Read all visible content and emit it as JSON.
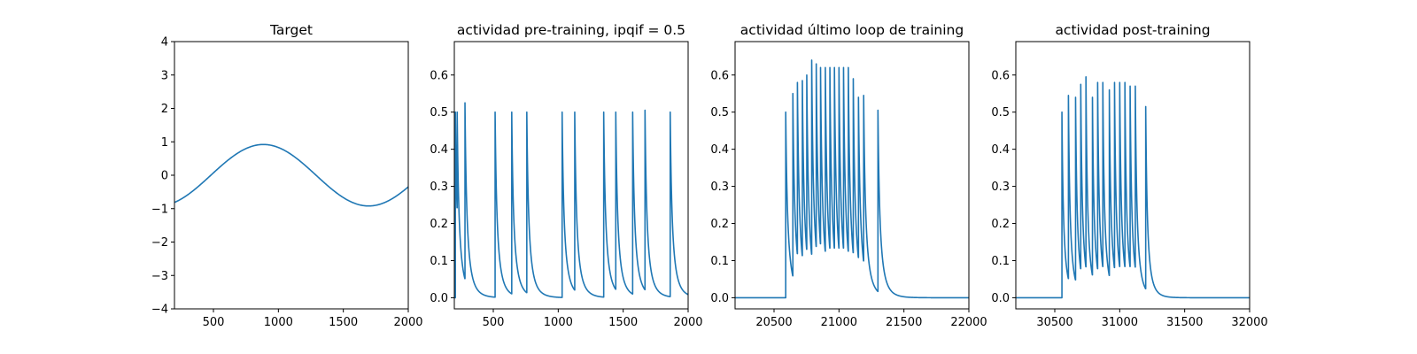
{
  "chart_data": [
    {
      "type": "line",
      "title": "Target",
      "xlim": [
        200,
        2000
      ],
      "ylim": [
        -4,
        4
      ],
      "xticks": [
        500,
        1000,
        1500,
        2000
      ],
      "yticks": [
        -4,
        -3,
        -2,
        -1,
        0,
        1,
        2,
        3,
        4
      ],
      "xtick_labels": [
        "500",
        "1000",
        "1500",
        "2000"
      ],
      "ytick_labels": [
        "−4",
        "−3",
        "−2",
        "−1",
        "0",
        "1",
        "2",
        "3",
        "4"
      ],
      "color": "#1f77b4",
      "series": [
        {
          "kind": "sine",
          "amplitude": 0.92,
          "period": 1620,
          "crest_x": 885
        }
      ]
    },
    {
      "type": "line",
      "title": "actividad pre-training, ipqif = 0.5",
      "xlim": [
        200,
        2000
      ],
      "ylim": [
        -0.03,
        0.69
      ],
      "xticks": [
        500,
        1000,
        1500,
        2000
      ],
      "yticks": [
        0.0,
        0.1,
        0.2,
        0.3,
        0.4,
        0.5,
        0.6
      ],
      "xtick_labels": [
        "500",
        "1000",
        "1500",
        "2000"
      ],
      "ytick_labels": [
        "0.0",
        "0.1",
        "0.2",
        "0.3",
        "0.4",
        "0.5",
        "0.6"
      ],
      "color": "#1f77b4",
      "series": [
        {
          "kind": "spikes",
          "spike_x": [
            208,
            222,
            282,
            514,
            642,
            758,
            1030,
            1127,
            1350,
            1443,
            1573,
            1668,
            1862
          ],
          "spike_peaks": [
            0.5,
            0.5,
            0.525,
            0.5,
            0.5,
            0.5,
            0.5,
            0.5,
            0.5,
            0.5,
            0.5,
            0.505,
            0.5
          ],
          "decay_tau": 18,
          "baseline": 0.0
        }
      ]
    },
    {
      "type": "line",
      "title": "actividad último loop de training",
      "xlim": [
        20200,
        22000
      ],
      "ylim": [
        -0.03,
        0.69
      ],
      "xticks": [
        20500,
        21000,
        21500,
        22000
      ],
      "yticks": [
        0.0,
        0.1,
        0.2,
        0.3,
        0.4,
        0.5,
        0.6
      ],
      "xtick_labels": [
        "20500",
        "21000",
        "21500",
        "22000"
      ],
      "ytick_labels": [
        "0.0",
        "0.1",
        "0.2",
        "0.3",
        "0.4",
        "0.5",
        "0.6"
      ],
      "color": "#1f77b4",
      "series": [
        {
          "kind": "spikes",
          "spike_x": [
            20590,
            20645,
            20680,
            20718,
            20752,
            20790,
            20825,
            20858,
            20895,
            20930,
            20965,
            21000,
            21035,
            21072,
            21110,
            21150,
            21190,
            21300
          ],
          "spike_peaks": [
            0.5,
            0.55,
            0.58,
            0.585,
            0.6,
            0.64,
            0.63,
            0.62,
            0.62,
            0.62,
            0.62,
            0.62,
            0.62,
            0.62,
            0.59,
            0.54,
            0.545,
            0.505
          ],
          "decay_tau": 18,
          "baseline": 0.0
        }
      ]
    },
    {
      "type": "line",
      "title": "actividad post-training",
      "xlim": [
        30200,
        32000
      ],
      "ylim": [
        -0.03,
        0.69
      ],
      "xticks": [
        30500,
        31000,
        31500,
        32000
      ],
      "yticks": [
        0.0,
        0.1,
        0.2,
        0.3,
        0.4,
        0.5,
        0.6
      ],
      "xtick_labels": [
        "30500",
        "31000",
        "31500",
        "32000"
      ],
      "ytick_labels": [
        "0.0",
        "0.1",
        "0.2",
        "0.3",
        "0.4",
        "0.5",
        "0.6"
      ],
      "color": "#1f77b4",
      "series": [
        {
          "kind": "spikes",
          "spike_x": [
            30555,
            30605,
            30660,
            30700,
            30740,
            30790,
            30830,
            30870,
            30920,
            30960,
            31000,
            31040,
            31080,
            31120,
            31200
          ],
          "spike_peaks": [
            0.5,
            0.545,
            0.54,
            0.575,
            0.595,
            0.54,
            0.58,
            0.58,
            0.56,
            0.58,
            0.58,
            0.58,
            0.57,
            0.57,
            0.515
          ],
          "decay_tau": 15,
          "baseline": 0.0
        }
      ]
    }
  ]
}
